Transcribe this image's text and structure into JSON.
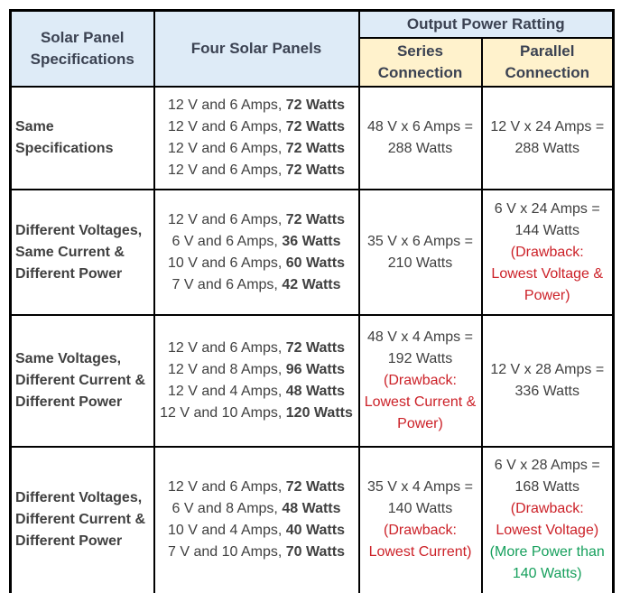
{
  "colors": {
    "header_blue": "#DEEBF7",
    "header_yellow": "#FFF2CC",
    "border": "#000000",
    "text": "#404040",
    "header_text": "#3B4252",
    "red": "#CC2128",
    "green": "#17A05D"
  },
  "table": {
    "header": {
      "col_spec": "Solar Panel Specifications",
      "col_panels": "Four Solar Panels",
      "output_power": "Output Power Ratting",
      "series": "Series Connection",
      "parallel": "Parallel Connection"
    },
    "rows": [
      {
        "spec": "Same Specifications",
        "panels": [
          {
            "pre": "12 V and 6 Amps, ",
            "bold": "72 Watts"
          },
          {
            "pre": "12 V and 6 Amps, ",
            "bold": "72 Watts"
          },
          {
            "pre": "12 V and 6 Amps, ",
            "bold": "72 Watts"
          },
          {
            "pre": "12 V and 6 Amps, ",
            "bold": "72 Watts"
          }
        ],
        "series": [
          {
            "t": "48 V x 6 Amps = 288 Watts",
            "c": "normal"
          }
        ],
        "parallel": [
          {
            "t": "12 V x 24 Amps = 288 Watts",
            "c": "normal"
          }
        ]
      },
      {
        "spec": "Different Voltages, Same Current & Different Power",
        "panels": [
          {
            "pre": "12 V and 6 Amps, ",
            "bold": "72 Watts"
          },
          {
            "pre": "6 V and 6 Amps, ",
            "bold": "36 Watts"
          },
          {
            "pre": "10 V and 6 Amps, ",
            "bold": "60 Watts"
          },
          {
            "pre": "7 V and 6 Amps, ",
            "bold": "42 Watts"
          }
        ],
        "series": [
          {
            "t": "35 V x 6 Amps = 210 Watts",
            "c": "normal"
          }
        ],
        "parallel": [
          {
            "t": "6 V x 24 Amps = 144 Watts",
            "c": "normal"
          },
          {
            "t": "(Drawback: Lowest Voltage & Power)",
            "c": "red"
          }
        ]
      },
      {
        "spec": "Same Voltages, Different Current & Different Power",
        "panels": [
          {
            "pre": "12 V and 6 Amps, ",
            "bold": "72 Watts"
          },
          {
            "pre": "12 V and 8 Amps, ",
            "bold": "96 Watts"
          },
          {
            "pre": "12 V and 4 Amps, ",
            "bold": "48 Watts"
          },
          {
            "pre": "12 V and 10 Amps, ",
            "bold": "120 Watts"
          }
        ],
        "series": [
          {
            "t": "48 V x 4 Amps = 192 Watts",
            "c": "normal"
          },
          {
            "t": "(Drawback: Lowest Current & Power)",
            "c": "red"
          }
        ],
        "parallel": [
          {
            "t": "12 V x 28 Amps = 336 Watts",
            "c": "normal"
          }
        ]
      },
      {
        "spec": "Different Voltages, Different Current & Different Power",
        "panels": [
          {
            "pre": "12 V and 6 Amps, ",
            "bold": "72 Watts"
          },
          {
            "pre": "6 V and 8 Amps, ",
            "bold": "48 Watts"
          },
          {
            "pre": "10 V and 4 Amps, ",
            "bold": "40 Watts"
          },
          {
            "pre": "7 V and 10 Amps, ",
            "bold": "70 Watts"
          }
        ],
        "series": [
          {
            "t": "35 V x 4 Amps = 140 Watts",
            "c": "normal"
          },
          {
            "t": "(Drawback: Lowest Current)",
            "c": "red"
          }
        ],
        "parallel": [
          {
            "t": "6 V x 28 Amps = 168 Watts",
            "c": "normal"
          },
          {
            "t": "(Drawback: Lowest Voltage)",
            "c": "red"
          },
          {
            "t": "(More Power than 140 Watts)",
            "c": "green"
          }
        ]
      }
    ]
  }
}
